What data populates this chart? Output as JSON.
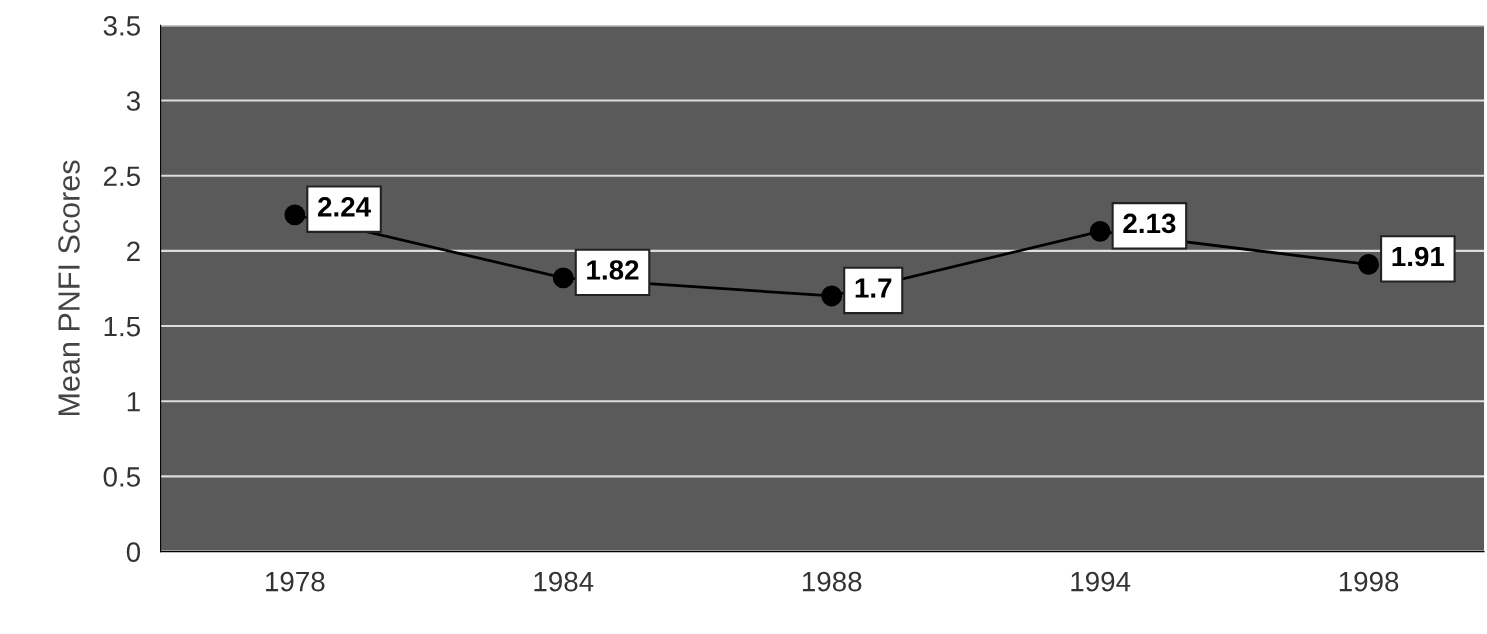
{
  "chart_data": {
    "type": "line",
    "ylabel": "Mean PNFI Scores",
    "categories": [
      "1978",
      "1984",
      "1988",
      "1994",
      "1998"
    ],
    "values": [
      2.24,
      1.82,
      1.7,
      2.13,
      1.91
    ],
    "color": "#000000",
    "ylim": [
      0,
      3.5
    ],
    "yticks": [
      0,
      0.5,
      1,
      1.5,
      2,
      2.5,
      3,
      3.5
    ],
    "grid": "y",
    "marker": "circle",
    "line_style": "solid",
    "data_labels": true
  }
}
